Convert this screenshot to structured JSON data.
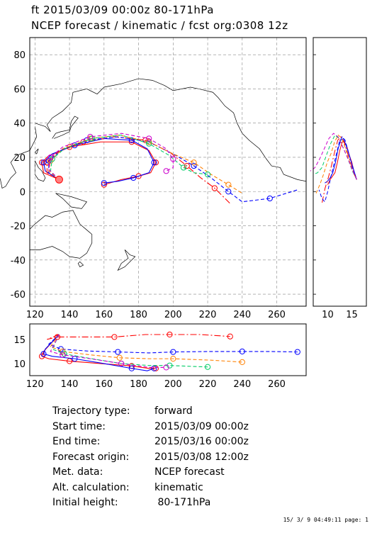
{
  "header": {
    "line1": "ft 2015/03/09 00:00z  80-171hPa",
    "line2": "NCEP forecast / kinematic / fcst org:0308 12z"
  },
  "info": [
    {
      "key": "Trajectory type:",
      "value": "forward"
    },
    {
      "key": "Start time:",
      "value": "2015/03/09 00:00z"
    },
    {
      "key": "End time:",
      "value": "2015/03/16 00:00z"
    },
    {
      "key": "Forecast origin:",
      "value": "2015/03/08 12:00z"
    },
    {
      "key": "Met. data:",
      "value": "NCEP forecast"
    },
    {
      "key": "Alt. calculation:",
      "value": "kinematic"
    },
    {
      "key": "Initial height:",
      "value": " 80-171hPa"
    }
  ],
  "footer": "15/ 3/ 9 04:49:11 page: 1",
  "chart_data": [
    {
      "type": "line",
      "panel": "map",
      "xlim": [
        117,
        277
      ],
      "ylim": [
        -67,
        90
      ],
      "xticks": [
        120,
        140,
        160,
        180,
        200,
        220,
        240,
        260
      ],
      "yticks": [
        -60,
        -40,
        -20,
        0,
        20,
        40,
        60,
        80
      ],
      "grid": true,
      "start_point": {
        "x": 134,
        "y": 7
      },
      "series": [
        {
          "color": "#ff0000",
          "style": "solid",
          "points": [
            [
              134,
              7
            ],
            [
              125,
              11
            ],
            [
              124,
              17
            ],
            [
              128,
              21
            ],
            [
              140,
              26
            ],
            [
              158,
              29
            ],
            [
              176,
              29
            ],
            [
              186,
              24
            ],
            [
              190,
              17
            ],
            [
              187,
              11
            ],
            [
              180,
              9
            ],
            [
              170,
              7
            ],
            [
              160,
              4
            ]
          ]
        },
        {
          "color": "#0000ff",
          "style": "solid",
          "points": [
            [
              134,
              7
            ],
            [
              126,
              12
            ],
            [
              125,
              17
            ],
            [
              130,
              22
            ],
            [
              143,
              27
            ],
            [
              160,
              31
            ],
            [
              176,
              30
            ],
            [
              185,
              25
            ],
            [
              189,
              17
            ],
            [
              186,
              11
            ],
            [
              177,
              8
            ],
            [
              168,
              6
            ],
            [
              160,
              5
            ]
          ]
        },
        {
          "color": "#ff0000",
          "style": "dashdot",
          "points": [
            [
              134,
              7
            ],
            [
              127,
              11
            ],
            [
              127,
              17
            ],
            [
              133,
              23
            ],
            [
              148,
              29
            ],
            [
              166,
              32
            ],
            [
              184,
              30
            ],
            [
              198,
              23
            ],
            [
              208,
              15
            ],
            [
              216,
              8
            ],
            [
              224,
              2
            ],
            [
              233,
              -7
            ]
          ]
        },
        {
          "color": "#0000ff",
          "style": "dashed",
          "points": [
            [
              134,
              7
            ],
            [
              128,
              11
            ],
            [
              128,
              18
            ],
            [
              135,
              24
            ],
            [
              150,
              30
            ],
            [
              168,
              32
            ],
            [
              186,
              29
            ],
            [
              200,
              22
            ],
            [
              212,
              15
            ],
            [
              222,
              8
            ],
            [
              232,
              0
            ],
            [
              240,
              -6
            ],
            [
              256,
              -4
            ],
            [
              272,
              1
            ]
          ]
        },
        {
          "color": "#ff8000",
          "style": "dashed",
          "points": [
            [
              134,
              7
            ],
            [
              128,
              12
            ],
            [
              129,
              18
            ],
            [
              136,
              25
            ],
            [
              152,
              31
            ],
            [
              169,
              33
            ],
            [
              186,
              29
            ],
            [
              200,
              22
            ],
            [
              212,
              17
            ],
            [
              222,
              10
            ],
            [
              232,
              4
            ],
            [
              240,
              -1
            ]
          ]
        },
        {
          "color": "#00cc66",
          "style": "dashed",
          "points": [
            [
              134,
              7
            ],
            [
              129,
              12
            ],
            [
              130,
              19
            ],
            [
              137,
              25
            ],
            [
              153,
              31
            ],
            [
              170,
              33
            ],
            [
              186,
              28
            ],
            [
              198,
              21
            ],
            [
              206,
              14
            ],
            [
              212,
              11
            ],
            [
              220,
              10
            ]
          ]
        },
        {
          "color": "#cc00cc",
          "style": "dashed",
          "points": [
            [
              134,
              7
            ],
            [
              128,
              13
            ],
            [
              129,
              20
            ],
            [
              136,
              26
            ],
            [
              152,
              32
            ],
            [
              170,
              34
            ],
            [
              186,
              31
            ],
            [
              196,
              25
            ],
            [
              200,
              19
            ],
            [
              200,
              14
            ],
            [
              196,
              12
            ]
          ]
        }
      ]
    },
    {
      "type": "line",
      "panel": "height-vs-latitude",
      "xlim": [
        7,
        18
      ],
      "ylim": [
        -67,
        90
      ],
      "xticks": [
        10,
        15
      ],
      "yticks": [
        -60,
        -40,
        -20,
        0,
        20,
        40,
        60,
        80
      ]
    },
    {
      "type": "line",
      "panel": "height-vs-longitude",
      "xlim": [
        117,
        277
      ],
      "ylim": [
        7.5,
        18.2
      ],
      "xticks": [
        120,
        140,
        160,
        180,
        200,
        220,
        240,
        260
      ],
      "yticks": [
        10,
        15
      ],
      "series": [
        {
          "color": "#ff0000",
          "style": "solid",
          "points": [
            [
              134,
              16
            ],
            [
              125,
              12.5
            ],
            [
              124,
              11.5
            ],
            [
              128,
              11
            ],
            [
              140,
              10.5
            ],
            [
              158,
              10
            ],
            [
              176,
              9.5
            ],
            [
              186,
              9
            ],
            [
              190,
              9
            ]
          ]
        },
        {
          "color": "#0000ff",
          "style": "solid",
          "points": [
            [
              134,
              16
            ],
            [
              126,
              13
            ],
            [
              125,
              12
            ],
            [
              130,
              11.5
            ],
            [
              143,
              11
            ],
            [
              160,
              10
            ],
            [
              176,
              9
            ],
            [
              185,
              8.5
            ],
            [
              189,
              9
            ]
          ]
        },
        {
          "color": "#ff0000",
          "style": "dashdot",
          "points": [
            [
              134,
              16
            ],
            [
              127,
              15
            ],
            [
              133,
              15.5
            ],
            [
              148,
              15.5
            ],
            [
              166,
              15.5
            ],
            [
              184,
              16
            ],
            [
              198,
              16
            ],
            [
              216,
              16
            ],
            [
              233,
              15.6
            ]
          ]
        },
        {
          "color": "#0000ff",
          "style": "dashed",
          "points": [
            [
              134,
              16
            ],
            [
              128,
              14
            ],
            [
              135,
              13
            ],
            [
              150,
              12.6
            ],
            [
              168,
              12.4
            ],
            [
              186,
              12.2
            ],
            [
              200,
              12.4
            ],
            [
              222,
              12.5
            ],
            [
              240,
              12.5
            ],
            [
              256,
              12.5
            ],
            [
              272,
              12.4
            ]
          ]
        },
        {
          "color": "#ff8000",
          "style": "dashed",
          "points": [
            [
              134,
              16
            ],
            [
              129,
              13.5
            ],
            [
              136,
              12.5
            ],
            [
              152,
              11.8
            ],
            [
              169,
              11.2
            ],
            [
              186,
              11
            ],
            [
              200,
              11
            ],
            [
              222,
              10.7
            ],
            [
              240,
              10.3
            ]
          ]
        },
        {
          "color": "#00cc66",
          "style": "dashed",
          "points": [
            [
              134,
              16
            ],
            [
              130,
              13
            ],
            [
              137,
              12
            ],
            [
              153,
              11
            ],
            [
              170,
              10
            ],
            [
              186,
              9.6
            ],
            [
              198,
              9.6
            ],
            [
              212,
              9.4
            ],
            [
              220,
              9.3
            ]
          ]
        },
        {
          "color": "#cc00cc",
          "style": "dashed",
          "points": [
            [
              134,
              16
            ],
            [
              129,
              12.5
            ],
            [
              136,
              11.8
            ],
            [
              152,
              11
            ],
            [
              170,
              10
            ],
            [
              186,
              9.2
            ],
            [
              196,
              9.2
            ]
          ]
        }
      ]
    }
  ]
}
